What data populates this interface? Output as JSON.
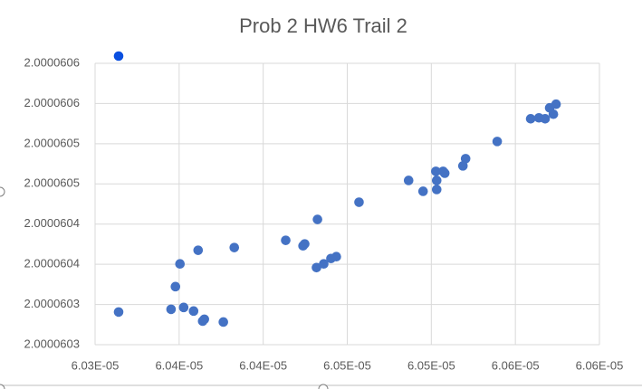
{
  "chart_data": {
    "type": "scatter",
    "title": "Prob 2 HW6 Trail 2",
    "xlim": [
      6.03e-05,
      6.06e-05
    ],
    "xticks": [
      {
        "value": 6.03e-05,
        "label": "6.03E-05"
      },
      {
        "value": 6.035e-05,
        "label": "6.04E-05"
      },
      {
        "value": 6.04e-05,
        "label": "6.04E-05"
      },
      {
        "value": 6.045e-05,
        "label": "6.05E-05"
      },
      {
        "value": 6.05e-05,
        "label": "6.05E-05"
      },
      {
        "value": 6.055e-05,
        "label": "6.06E-05"
      },
      {
        "value": 6.06e-05,
        "label": "6.06E-05"
      }
    ],
    "ylim": [
      2.00006025,
      2.0000606
    ],
    "yticks": [
      {
        "value": 2.00006025,
        "label": "2.0000603"
      },
      {
        "value": 2.0000603,
        "label": "2.0000603"
      },
      {
        "value": 2.00006035,
        "label": "2.0000604"
      },
      {
        "value": 2.0000604,
        "label": "2.0000604"
      },
      {
        "value": 2.00006045,
        "label": "2.0000605"
      },
      {
        "value": 2.0000605,
        "label": "2.0000605"
      },
      {
        "value": 2.00006055,
        "label": "2.0000606"
      },
      {
        "value": 2.0000606,
        "label": "2.0000606"
      }
    ],
    "grid": true,
    "series": [
      {
        "color": "#4472c4",
        "x": [
          6.0314e-05,
          6.03452e-05,
          6.03527e-05,
          6.03586e-05,
          6.03478e-05,
          6.03505e-05,
          6.03613e-05,
          6.0364e-05,
          6.0365e-05,
          6.03763e-05,
          6.03828e-05,
          6.04134e-05,
          6.04237e-05,
          6.04247e-05,
          6.04323e-05,
          6.04317e-05,
          6.0436e-05,
          6.04403e-05,
          6.04435e-05,
          6.0457e-05,
          6.04865e-05,
          6.04951e-05,
          6.05027e-05,
          6.05032e-05,
          6.05032e-05,
          6.0507e-05,
          6.0508e-05,
          6.05188e-05,
          6.05204e-05,
          6.05392e-05,
          6.05591e-05,
          6.0564e-05,
          6.05677e-05,
          6.05704e-05,
          6.05726e-05,
          6.05742e-05
        ],
        "values": [
          2.0000602906,
          2.000060294,
          2.0000602963,
          2.0000602918,
          2.0000603222,
          2.0000603505,
          2.0000603674,
          2.0000602793,
          2.0000602816,
          2.0000602782,
          2.0000603708,
          2.0000603798,
          2.000060373,
          2.0000603753,
          2.0000604058,
          2.0000603459,
          2.0000603505,
          2.0000603572,
          2.0000603595,
          2.0000604272,
          2.0000604543,
          2.0000604408,
          2.0000604656,
          2.0000604543,
          2.000060443,
          2.0000604656,
          2.0000604633,
          2.0000604724,
          2.0000604814,
          2.0000605028,
          2.000060531,
          2.0000605322,
          2.000060531,
          2.0000605446,
          2.0000605367,
          2.0000605491
        ]
      },
      {
        "color": "#0a4fe0",
        "x": [
          6.0314e-05
        ],
        "values": [
          2.000060609
        ]
      }
    ]
  }
}
